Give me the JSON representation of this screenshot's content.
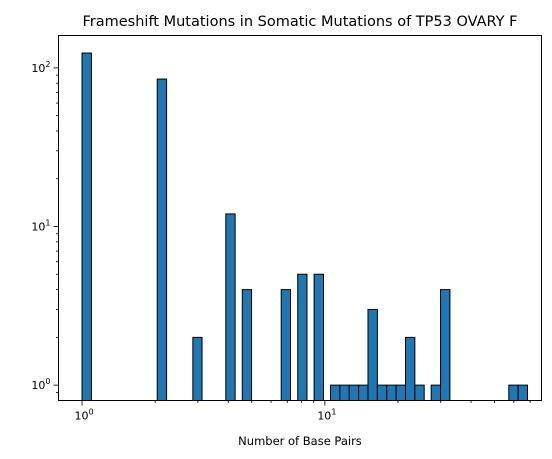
{
  "chart_data": {
    "type": "bar",
    "title": "Frameshift Mutations in Somatic Mutations of TP53 OVARY F",
    "xlabel": "Number of Base Pairs",
    "ylabel": "",
    "x_scale": "log",
    "y_scale": "log",
    "xlim": [
      0.8,
      78
    ],
    "ylim": [
      0.8,
      160
    ],
    "grid": false,
    "x_major_ticks": [
      {
        "value": 1,
        "base": "10",
        "exp": "0"
      },
      {
        "value": 10,
        "base": "10",
        "exp": "1"
      }
    ],
    "y_major_ticks": [
      {
        "value": 1,
        "base": "10",
        "exp": "0"
      },
      {
        "value": 10,
        "base": "10",
        "exp": "1"
      },
      {
        "value": 100,
        "base": "10",
        "exp": "2"
      }
    ],
    "bars": [
      {
        "x_start": 1.0,
        "x_end": 1.093,
        "value": 124
      },
      {
        "x_start": 2.04,
        "x_end": 2.23,
        "value": 85
      },
      {
        "x_start": 2.86,
        "x_end": 3.12,
        "value": 2
      },
      {
        "x_start": 3.91,
        "x_end": 4.27,
        "value": 12
      },
      {
        "x_start": 4.57,
        "x_end": 4.99,
        "value": 4
      },
      {
        "x_start": 6.61,
        "x_end": 7.22,
        "value": 4
      },
      {
        "x_start": 7.73,
        "x_end": 8.44,
        "value": 5
      },
      {
        "x_start": 9.03,
        "x_end": 9.87,
        "value": 5
      },
      {
        "x_start": 10.55,
        "x_end": 11.53,
        "value": 1
      },
      {
        "x_start": 11.53,
        "x_end": 12.6,
        "value": 1
      },
      {
        "x_start": 12.6,
        "x_end": 13.77,
        "value": 1
      },
      {
        "x_start": 13.77,
        "x_end": 15.05,
        "value": 1
      },
      {
        "x_start": 15.05,
        "x_end": 16.45,
        "value": 3
      },
      {
        "x_start": 16.45,
        "x_end": 17.98,
        "value": 1
      },
      {
        "x_start": 17.98,
        "x_end": 19.65,
        "value": 1
      },
      {
        "x_start": 19.65,
        "x_end": 21.48,
        "value": 1
      },
      {
        "x_start": 21.48,
        "x_end": 23.47,
        "value": 2
      },
      {
        "x_start": 23.47,
        "x_end": 25.65,
        "value": 1
      },
      {
        "x_start": 27.4,
        "x_end": 29.95,
        "value": 1
      },
      {
        "x_start": 29.95,
        "x_end": 32.73,
        "value": 4
      },
      {
        "x_start": 57.2,
        "x_end": 62.5,
        "value": 1
      },
      {
        "x_start": 62.5,
        "x_end": 68.3,
        "value": 1
      }
    ]
  }
}
